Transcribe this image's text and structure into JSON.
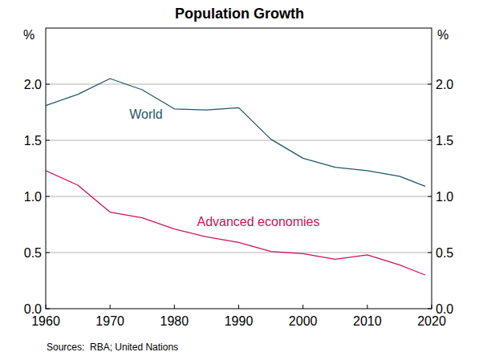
{
  "chart_data": {
    "type": "line",
    "title": "Population Growth",
    "y_label": "%",
    "y2_label": "%",
    "source": "Sources:  RBA; United Nations",
    "x": [
      1960,
      1965,
      1970,
      1975,
      1980,
      1985,
      1990,
      1995,
      2000,
      2005,
      2010,
      2015,
      2019
    ],
    "series": [
      {
        "name": "World",
        "color": "#1e5868",
        "values": [
          1.81,
          1.91,
          2.05,
          1.95,
          1.78,
          1.77,
          1.79,
          1.51,
          1.34,
          1.26,
          1.23,
          1.18,
          1.09
        ]
      },
      {
        "name": "Advanced economies",
        "color": "#d0105a",
        "values": [
          1.23,
          1.1,
          0.86,
          0.81,
          0.71,
          0.64,
          0.59,
          0.51,
          0.49,
          0.44,
          0.48,
          0.39,
          0.3
        ]
      }
    ],
    "xlim": [
      1960,
      2020
    ],
    "xticks": [
      1960,
      1970,
      1980,
      1990,
      2000,
      2010,
      2020
    ],
    "ylim": [
      0,
      2.5
    ],
    "yticks": [
      {
        "value": 0,
        "label": "0.0"
      },
      0.5,
      {
        "value": 1,
        "label": "1.0"
      },
      1.5,
      {
        "value": 2,
        "label": "2.0"
      }
    ],
    "y2lim": [
      0,
      2.5
    ],
    "y2ticks": [
      {
        "value": 0,
        "label": "0.0"
      },
      0.5,
      {
        "value": 1,
        "label": "1.0"
      },
      1.5,
      {
        "value": 2,
        "label": "2.0"
      }
    ],
    "grid": true
  }
}
